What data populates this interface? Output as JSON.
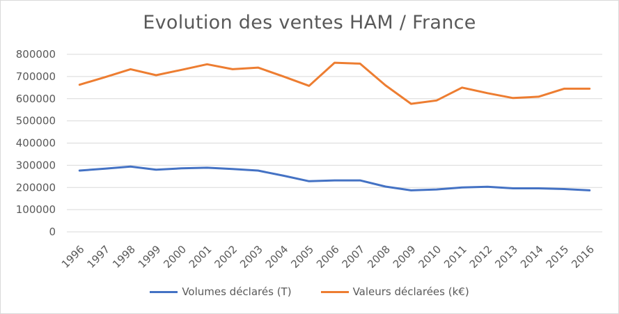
{
  "chart_data": {
    "type": "line",
    "title": "Evolution des ventes HAM / France",
    "x": [
      "1996",
      "1997",
      "1998",
      "1999",
      "2000",
      "2001",
      "2002",
      "2003",
      "2004",
      "2005",
      "2006",
      "2007",
      "2008",
      "2009",
      "2010",
      "2011",
      "2012",
      "2013",
      "2014",
      "2015",
      "2016"
    ],
    "yticks": [
      "0",
      "100000",
      "200000",
      "300000",
      "400000",
      "500000",
      "600000",
      "700000",
      "800000"
    ],
    "ylim": [
      0,
      800000
    ],
    "grid": true,
    "legend_position": "bottom",
    "series": [
      {
        "name": "Volumes déclarés (T)",
        "color": "#4472c4",
        "values": [
          276000,
          285000,
          294000,
          280000,
          286000,
          289000,
          283000,
          276000,
          253000,
          228000,
          232000,
          232000,
          204000,
          187000,
          191000,
          200000,
          203000,
          196000,
          196000,
          193000,
          187000
        ]
      },
      {
        "name": "Valeurs déclarées (k€)",
        "color": "#ed7d31",
        "values": [
          663000,
          697000,
          733000,
          706000,
          730000,
          755000,
          733000,
          740000,
          700000,
          658000,
          762000,
          758000,
          660000,
          577000,
          592000,
          650000,
          625000,
          603000,
          609000,
          645000,
          645000
        ]
      }
    ]
  }
}
